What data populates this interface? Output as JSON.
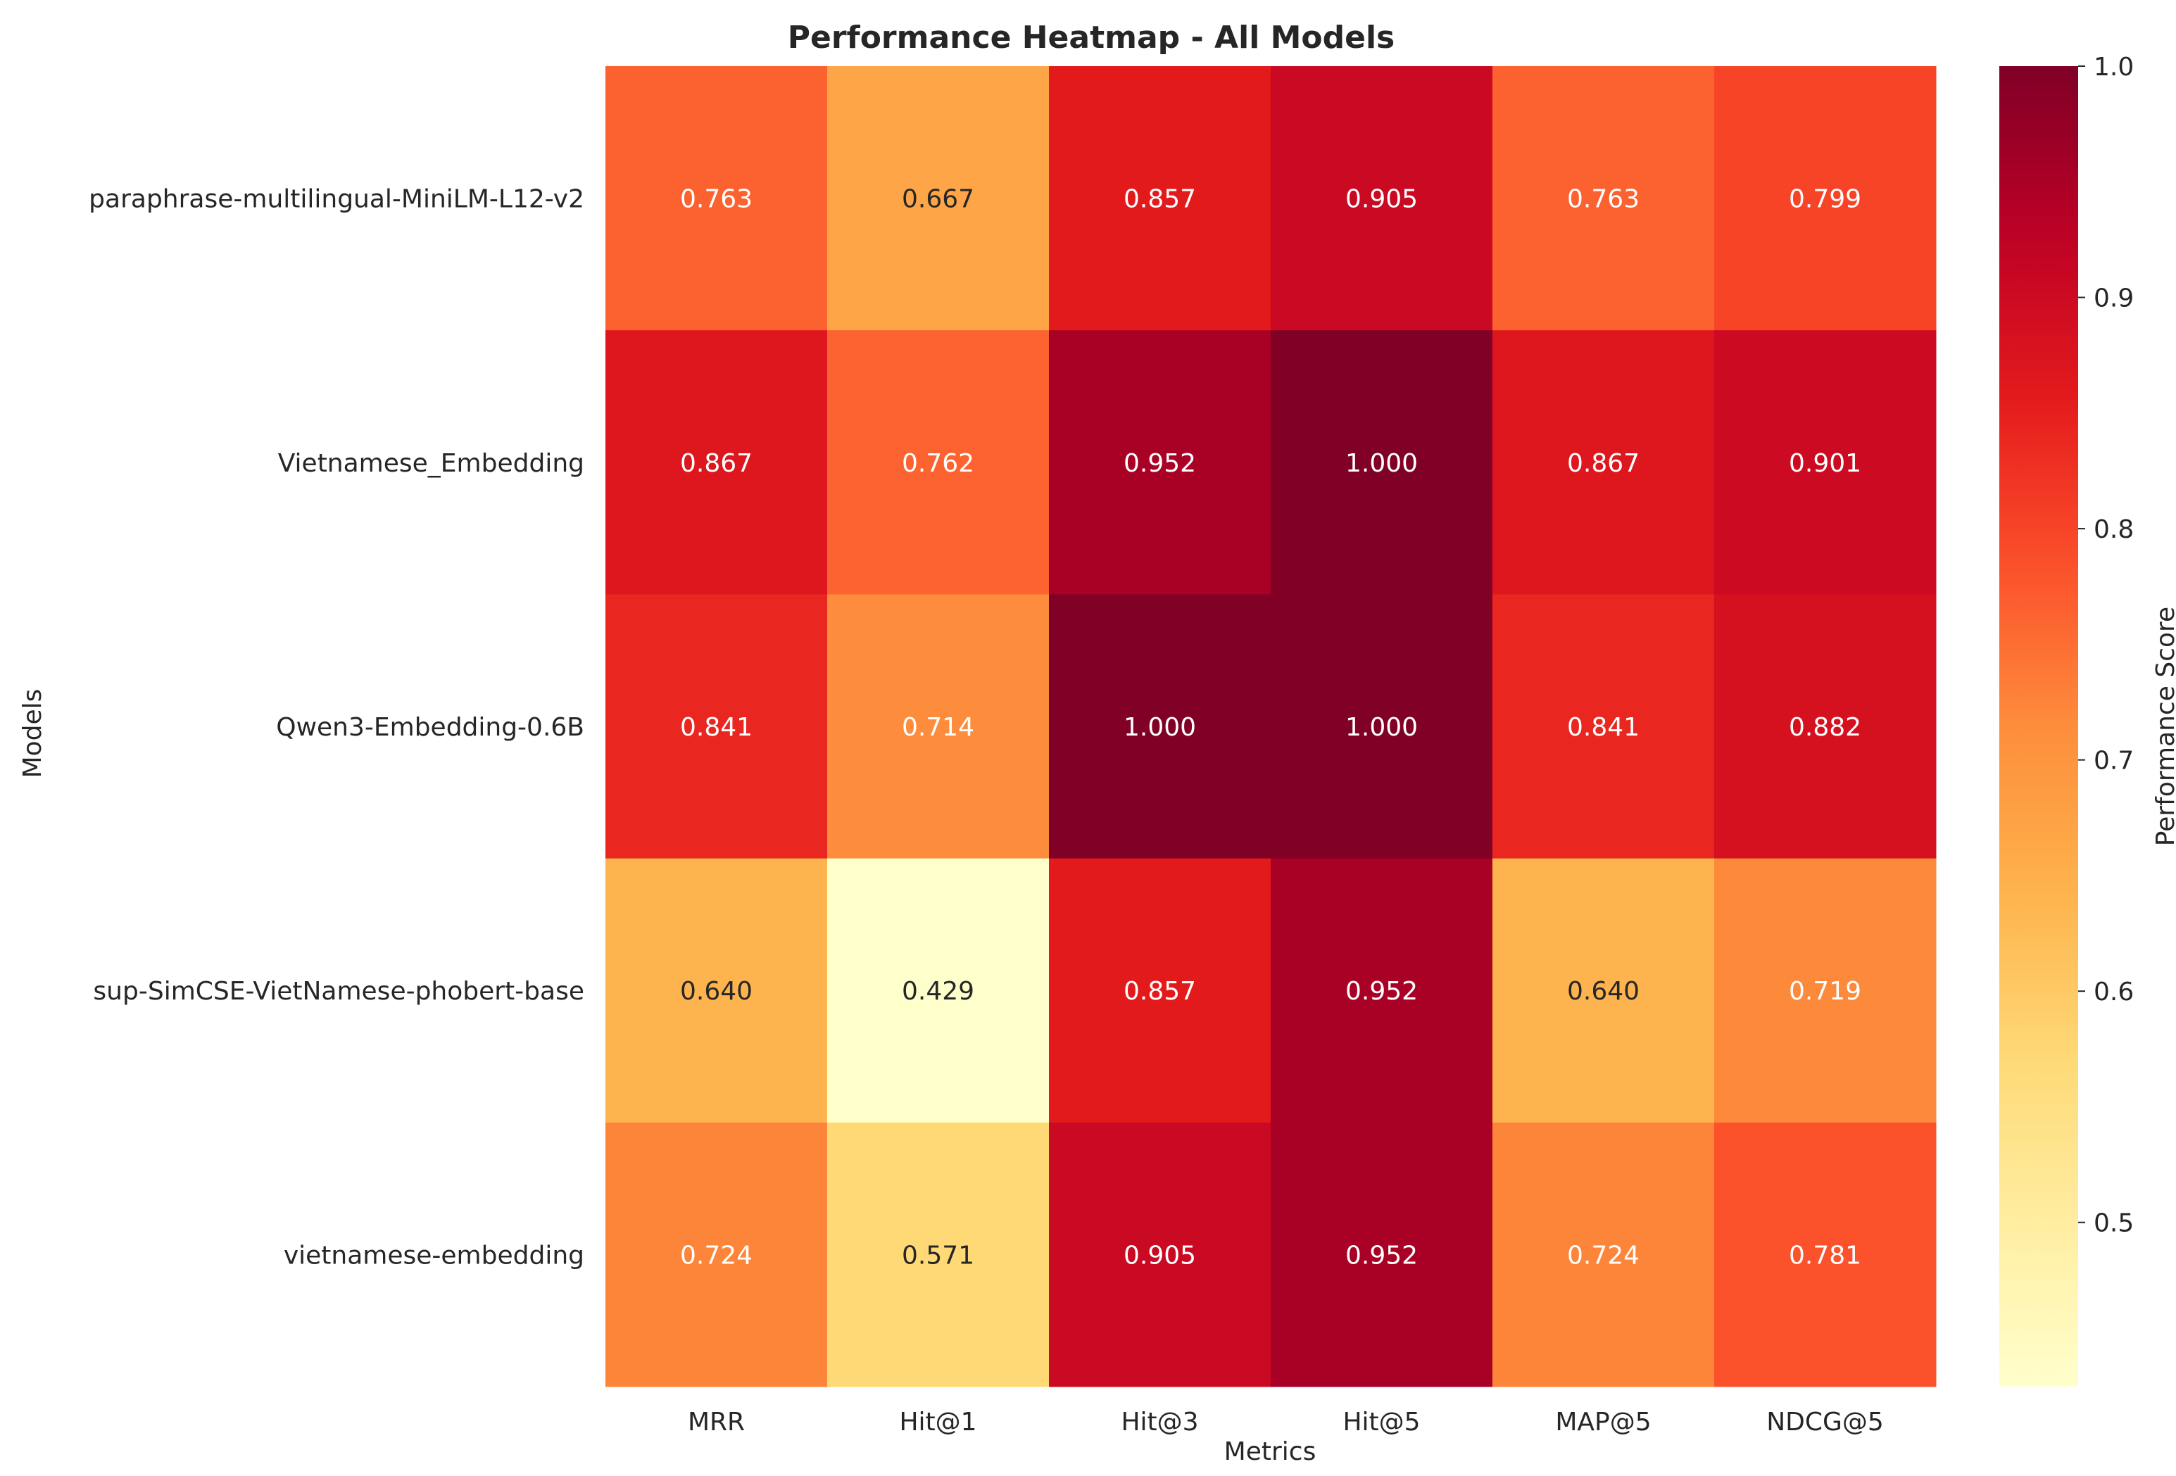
{
  "chart_data": {
    "type": "heatmap",
    "title": "Performance Heatmap - All Models",
    "xlabel": "Metrics",
    "ylabel": "Models",
    "colorbar_label": "Performance Score",
    "x_categories": [
      "MRR",
      "Hit@1",
      "Hit@3",
      "Hit@5",
      "MAP@5",
      "NDCG@5"
    ],
    "y_categories": [
      "paraphrase-multilingual-MiniLM-L12-v2",
      "Vietnamese_Embedding",
      "Qwen3-Embedding-0.6B",
      "sup-SimCSE-VietNamese-phobert-base",
      "vietnamese-embedding"
    ],
    "values": [
      [
        0.763,
        0.667,
        0.857,
        0.905,
        0.763,
        0.799
      ],
      [
        0.867,
        0.762,
        0.952,
        1.0,
        0.867,
        0.901
      ],
      [
        0.841,
        0.714,
        1.0,
        1.0,
        0.841,
        0.882
      ],
      [
        0.64,
        0.429,
        0.857,
        0.952,
        0.64,
        0.719
      ],
      [
        0.724,
        0.571,
        0.905,
        0.952,
        0.724,
        0.781
      ]
    ],
    "value_labels": [
      [
        "0.763",
        "0.667",
        "0.857",
        "0.905",
        "0.763",
        "0.799"
      ],
      [
        "0.867",
        "0.762",
        "0.952",
        "1.000",
        "0.867",
        "0.901"
      ],
      [
        "0.841",
        "0.714",
        "1.000",
        "1.000",
        "0.841",
        "0.882"
      ],
      [
        "0.640",
        "0.429",
        "0.857",
        "0.952",
        "0.640",
        "0.719"
      ],
      [
        "0.724",
        "0.571",
        "0.905",
        "0.952",
        "0.724",
        "0.781"
      ]
    ],
    "colormap": "YlOrRd",
    "color_range": [
      0.429,
      1.0
    ],
    "colorbar_ticks": [
      "0.5",
      "0.6",
      "0.7",
      "0.8",
      "0.9",
      "1.0"
    ],
    "grid": false
  }
}
